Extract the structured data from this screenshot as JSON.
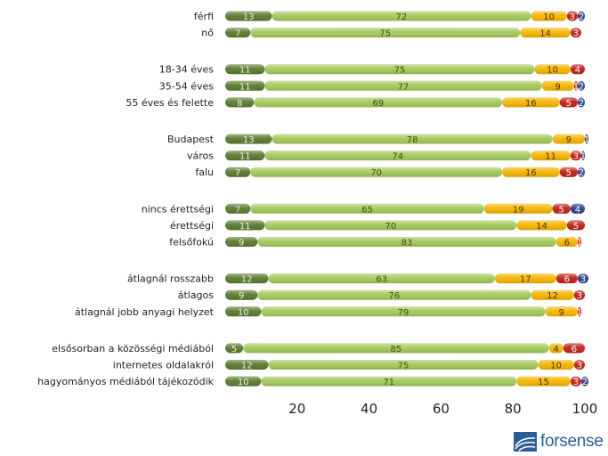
{
  "chart_data": {
    "type": "bar",
    "stacked": true,
    "orientation": "horizontal",
    "categories": [
      "férfi",
      "nő",
      "18-34 éves",
      "35-54 éves",
      "55 éves és felette",
      "Budapest",
      "város",
      "falu",
      "nincs érettségi",
      "érettségi",
      "felsőfokú",
      "átlagnál rosszabb",
      "átlagos",
      "átlagnál jobb anyagi helyzet",
      "elsősorban a közösségi médiából",
      "internetes oldalakról",
      "hagyományos médiából tájékozódik"
    ],
    "groups": [
      2,
      3,
      3,
      3,
      3,
      3
    ],
    "series": [
      {
        "color": "#5a7a2e",
        "values": [
          13,
          7,
          11,
          11,
          8,
          13,
          11,
          7,
          7,
          11,
          9,
          12,
          9,
          10,
          5,
          12,
          10
        ]
      },
      {
        "color": "#a3c95a",
        "values": [
          72,
          75,
          75,
          77,
          69,
          78,
          74,
          70,
          65,
          70,
          83,
          63,
          76,
          79,
          85,
          75,
          71
        ]
      },
      {
        "color": "#f5b400",
        "values": [
          10,
          14,
          10,
          9,
          16,
          9,
          11,
          16,
          19,
          14,
          6,
          17,
          12,
          9,
          4,
          10,
          15
        ]
      },
      {
        "color": "#c0201a",
        "values": [
          3,
          3,
          4,
          1,
          5,
          0,
          3,
          5,
          5,
          5,
          1,
          6,
          3,
          1,
          6,
          3,
          3
        ]
      },
      {
        "color": "#2c3f8c",
        "values": [
          2,
          0,
          0,
          2,
          2,
          1,
          1,
          2,
          4,
          0,
          0,
          3,
          0,
          0,
          0,
          0,
          2
        ]
      }
    ],
    "xlim": [
      0,
      100
    ],
    "xticks": [
      20,
      40,
      60,
      80,
      100
    ]
  },
  "logo": {
    "text": "forsense"
  }
}
